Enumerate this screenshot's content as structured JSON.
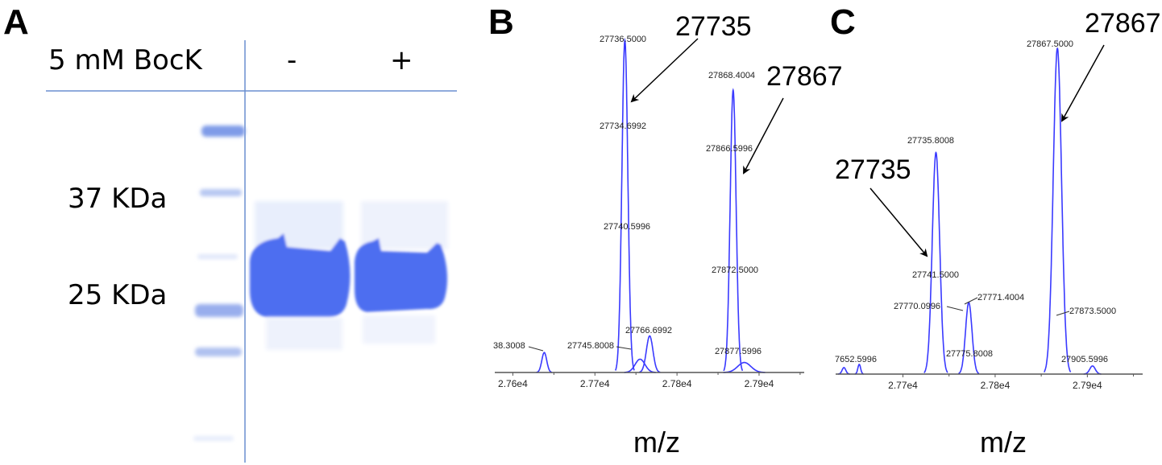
{
  "panels": {
    "a": {
      "letter": "A",
      "condition_label": "5 mM BocK",
      "lanes": [
        "-",
        "+"
      ],
      "markers": [
        "37 KDa",
        "25 KDa"
      ]
    },
    "b": {
      "letter": "B"
    },
    "c": {
      "letter": "C"
    }
  },
  "chart_data": [
    {
      "type": "line",
      "panel": "B",
      "xlabel": "m/z",
      "xlim": [
        27578,
        27955
      ],
      "ylim": [
        0,
        100
      ],
      "xticks": [
        27600,
        27700,
        27800,
        27900
      ],
      "xtick_labels": [
        "2.76e4",
        "2.77e4",
        "2.78e4",
        "2.79e4"
      ],
      "color": "#3a3aff",
      "peaks": [
        {
          "mz": 27638.3,
          "intensity": 6,
          "sigma": 3
        },
        {
          "mz": 27736.5,
          "intensity": 100,
          "sigma": 3.6
        },
        {
          "mz": 27755,
          "intensity": 4,
          "sigma": 6
        },
        {
          "mz": 27766.7,
          "intensity": 11,
          "sigma": 4
        },
        {
          "mz": 27868.4,
          "intensity": 85,
          "sigma": 3.6
        },
        {
          "mz": 27882,
          "intensity": 3,
          "sigma": 8
        }
      ],
      "peak_labels": [
        "27736.5000",
        "27734.6992",
        "27740.5996",
        "27745.8008",
        "27766.6992",
        "38.3008",
        "27868.4004",
        "27866.5996",
        "27872.5000",
        "27877.5996"
      ],
      "annotations": [
        "27735",
        "27867"
      ]
    },
    {
      "type": "line",
      "panel": "C",
      "xlabel": "m/z",
      "xlim": [
        27627,
        27960
      ],
      "ylim": [
        0,
        100
      ],
      "xticks": [
        27700,
        27800,
        27900
      ],
      "xtick_labels": [
        "2.77e4",
        "2.78e4",
        "2.79e4"
      ],
      "color": "#3a3aff",
      "peaks": [
        {
          "mz": 27636,
          "intensity": 2,
          "sigma": 2
        },
        {
          "mz": 27652.6,
          "intensity": 3,
          "sigma": 1.5
        },
        {
          "mz": 27735.8,
          "intensity": 68,
          "sigma": 4
        },
        {
          "mz": 27771.4,
          "intensity": 22,
          "sigma": 3.5
        },
        {
          "mz": 27867.5,
          "intensity": 100,
          "sigma": 4.5
        },
        {
          "mz": 27905.6,
          "intensity": 2.5,
          "sigma": 3
        }
      ],
      "peak_labels": [
        "27867.5000",
        "27735.8008",
        "27741.5000",
        "27770.0996",
        "27771.4004",
        "27873.5000",
        "27775.8008",
        "7652.5996",
        "27905.5996"
      ],
      "annotations": [
        "27867",
        "27735"
      ]
    }
  ]
}
